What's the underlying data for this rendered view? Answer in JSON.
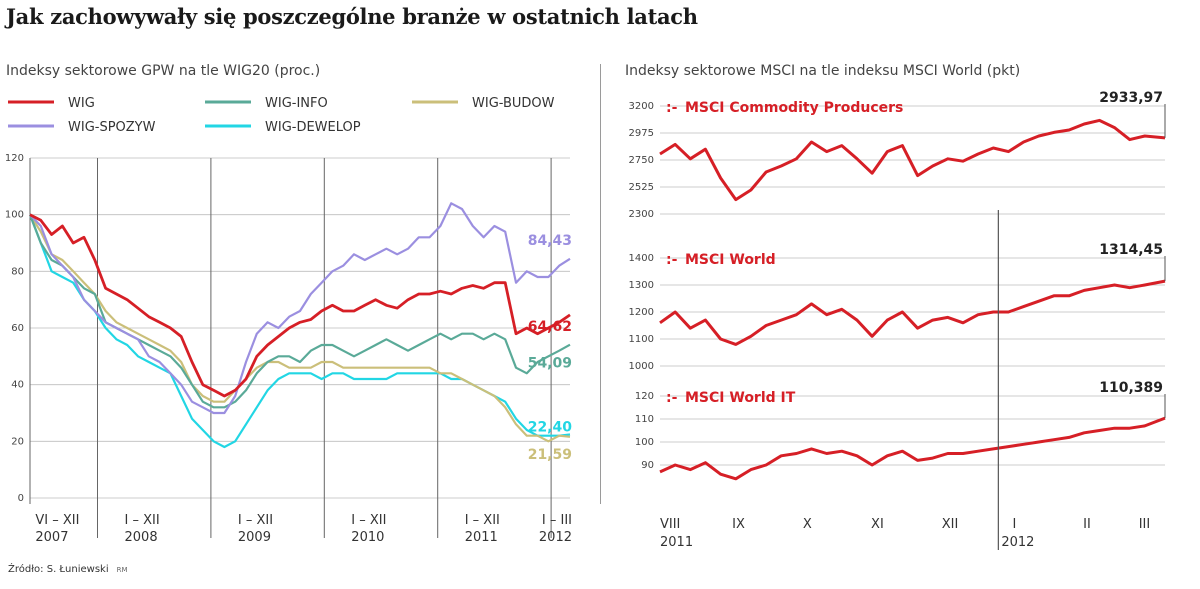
{
  "title": "Jak zachowywały się poszczególne branże w ostatnich latach",
  "source": "Źródło: S. Łuniewski",
  "source_tag": "RM",
  "colors": {
    "WIG": "#d61f26",
    "WIG-SPOZYW": "#9b8fe0",
    "WIG-INFO": "#5aaa98",
    "WIG-DEWELOP": "#22d6e4",
    "WIG-BUDOW": "#cbbf7a",
    "msci": "#d61f26",
    "grid": "#bdbdbd"
  },
  "chart_data": [
    {
      "type": "line",
      "title": "Indeksy sektorowe GPW na tle WIG20 (proc.)",
      "ylim": [
        0,
        120
      ],
      "yticks": [
        0,
        20,
        40,
        60,
        80,
        100,
        120
      ],
      "xlim": [
        0,
        100
      ],
      "period_labels": [
        {
          "line1": "VI – XII",
          "line2": "2007",
          "x": 1
        },
        {
          "line1": "I – XII",
          "line2": "2008",
          "x": 17.5
        },
        {
          "line1": "I – XII",
          "line2": "2009",
          "x": 38.5
        },
        {
          "line1": "I – XII",
          "line2": "2010",
          "x": 59.5
        },
        {
          "line1": "I – XII",
          "line2": "2011",
          "x": 80.5
        },
        {
          "line1": "I – III",
          "line2": "2012",
          "x": 97.5
        }
      ],
      "period_dividers": [
        12.5,
        33.5,
        54.5,
        75.5,
        96.5
      ],
      "x": [
        0,
        2,
        4,
        6,
        8,
        10,
        12,
        14,
        16,
        18,
        20,
        22,
        24,
        26,
        28,
        30,
        32,
        34,
        36,
        38,
        40,
        42,
        44,
        46,
        48,
        50,
        52,
        54,
        56,
        58,
        60,
        62,
        64,
        66,
        68,
        70,
        72,
        74,
        76,
        78,
        80,
        82,
        84,
        86,
        88,
        90,
        92,
        94,
        96,
        98,
        100
      ],
      "series": [
        {
          "name": "WIG",
          "end_label": "64,62",
          "values": [
            100,
            98,
            93,
            96,
            90,
            92,
            84,
            74,
            72,
            70,
            67,
            64,
            62,
            60,
            57,
            48,
            40,
            38,
            36,
            38,
            42,
            50,
            54,
            57,
            60,
            62,
            63,
            66,
            68,
            66,
            66,
            68,
            70,
            68,
            67,
            70,
            72,
            72,
            73,
            72,
            74,
            75,
            74,
            76,
            76,
            58,
            60,
            58,
            60,
            62,
            64.62
          ]
        },
        {
          "name": "WIG-SPOZYW",
          "end_label": "84,43",
          "values": [
            100,
            96,
            86,
            82,
            78,
            70,
            66,
            62,
            60,
            58,
            56,
            50,
            48,
            44,
            40,
            34,
            32,
            30,
            30,
            36,
            48,
            58,
            62,
            60,
            64,
            66,
            72,
            76,
            80,
            82,
            86,
            84,
            86,
            88,
            86,
            88,
            92,
            92,
            96,
            104,
            102,
            96,
            92,
            96,
            94,
            76,
            80,
            78,
            78,
            82,
            84.43
          ]
        },
        {
          "name": "WIG-INFO",
          "end_label": "54,09",
          "values": [
            100,
            90,
            84,
            82,
            78,
            74,
            72,
            62,
            60,
            58,
            56,
            54,
            52,
            50,
            46,
            40,
            34,
            32,
            32,
            34,
            38,
            44,
            48,
            50,
            50,
            48,
            52,
            54,
            54,
            52,
            50,
            52,
            54,
            56,
            54,
            52,
            54,
            56,
            58,
            56,
            58,
            58,
            56,
            58,
            56,
            46,
            44,
            48,
            50,
            52,
            54.09
          ]
        },
        {
          "name": "WIG-DEWELOP",
          "end_label": "22,40",
          "values": [
            100,
            90,
            80,
            78,
            76,
            70,
            66,
            60,
            56,
            54,
            50,
            48,
            46,
            44,
            36,
            28,
            24,
            20,
            18,
            20,
            26,
            32,
            38,
            42,
            44,
            44,
            44,
            42,
            44,
            44,
            42,
            42,
            42,
            42,
            44,
            44,
            44,
            44,
            44,
            42,
            42,
            40,
            38,
            36,
            34,
            28,
            24,
            22,
            22,
            22,
            22.4
          ]
        },
        {
          "name": "WIG-BUDOW",
          "end_label": "21,59",
          "values": [
            100,
            94,
            86,
            84,
            80,
            76,
            72,
            66,
            62,
            60,
            58,
            56,
            54,
            52,
            48,
            40,
            36,
            34,
            34,
            38,
            42,
            46,
            48,
            48,
            46,
            46,
            46,
            48,
            48,
            46,
            46,
            46,
            46,
            46,
            46,
            46,
            46,
            46,
            44,
            44,
            42,
            40,
            38,
            36,
            32,
            26,
            22,
            22,
            20,
            22,
            21.59
          ]
        }
      ],
      "legend": [
        {
          "name": "WIG",
          "col": 0,
          "row": 0
        },
        {
          "name": "WIG-SPOZYW",
          "col": 0,
          "row": 1
        },
        {
          "name": "WIG-INFO",
          "col": 1,
          "row": 0
        },
        {
          "name": "WIG-DEWELOP",
          "col": 1,
          "row": 1
        },
        {
          "name": "WIG-BUDOW",
          "col": 2,
          "row": 0
        }
      ]
    },
    {
      "type": "line",
      "title": "Indeksy sektorowe MSCI na tle indeksu MSCI World (pkt)",
      "month_labels": [
        {
          "label": "VIII",
          "x": 0
        },
        {
          "label": "IX",
          "x": 13.5
        },
        {
          "label": "X",
          "x": 27.5
        },
        {
          "label": "XI",
          "x": 41
        },
        {
          "label": "XII",
          "x": 55
        },
        {
          "label": "I",
          "x": 69
        },
        {
          "label": "II",
          "x": 83
        },
        {
          "label": "III",
          "x": 94
        }
      ],
      "year_labels": [
        {
          "label": "2011",
          "x": 0
        },
        {
          "label": "2012",
          "x": 69
        }
      ],
      "year_divider": 67,
      "x": [
        0,
        3,
        6,
        9,
        12,
        15,
        18,
        21,
        24,
        27,
        30,
        33,
        36,
        39,
        42,
        45,
        48,
        51,
        54,
        57,
        60,
        63,
        66,
        69,
        72,
        75,
        78,
        81,
        84,
        87,
        90,
        93,
        96,
        100
      ],
      "panels": [
        {
          "title": "MSCI Commodity Producers",
          "ylim": [
            2300,
            3200
          ],
          "yticks": [
            2300,
            2525,
            2750,
            2975,
            3200
          ],
          "end_label": "2933,97",
          "values": [
            2800,
            2880,
            2760,
            2840,
            2600,
            2420,
            2500,
            2650,
            2700,
            2760,
            2900,
            2820,
            2870,
            2760,
            2640,
            2820,
            2870,
            2620,
            2700,
            2760,
            2740,
            2800,
            2850,
            2820,
            2900,
            2950,
            2980,
            3000,
            3050,
            3080,
            3020,
            2920,
            2950,
            2933.97
          ]
        },
        {
          "title": "MSCI World",
          "ylim": [
            1000,
            1400
          ],
          "yticks": [
            1000,
            1100,
            1200,
            1300,
            1400
          ],
          "end_label": "1314,45",
          "values": [
            1160,
            1200,
            1140,
            1170,
            1100,
            1080,
            1110,
            1150,
            1170,
            1190,
            1230,
            1190,
            1210,
            1170,
            1110,
            1170,
            1200,
            1140,
            1170,
            1180,
            1160,
            1190,
            1200,
            1200,
            1220,
            1240,
            1260,
            1260,
            1280,
            1290,
            1300,
            1290,
            1300,
            1314.45
          ]
        },
        {
          "title": "MSCI World IT",
          "ylim": [
            80,
            120
          ],
          "yticks": [
            90,
            100,
            110,
            120
          ],
          "end_label": "110,389",
          "values": [
            87,
            90,
            88,
            91,
            86,
            84,
            88,
            90,
            94,
            95,
            97,
            95,
            96,
            94,
            90,
            94,
            96,
            92,
            93,
            95,
            95,
            96,
            97,
            98,
            99,
            100,
            101,
            102,
            104,
            105,
            106,
            106,
            107,
            110.389
          ]
        }
      ]
    }
  ]
}
